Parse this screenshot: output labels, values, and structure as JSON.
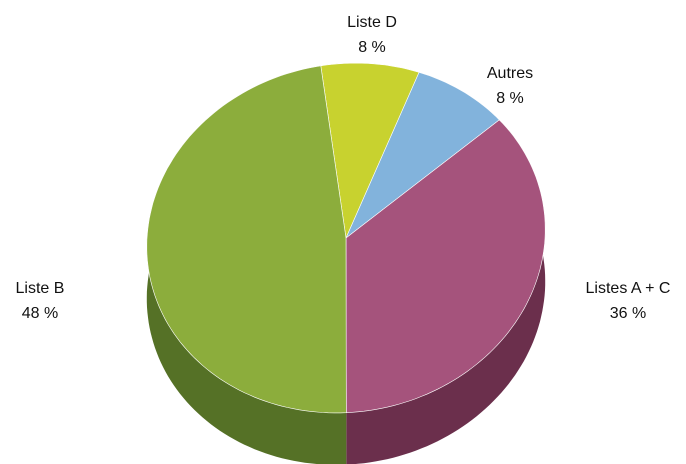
{
  "chart_data": {
    "type": "pie",
    "style": "3d-tilted",
    "title": "",
    "legend": "none",
    "slices": [
      {
        "label": "Listes A + C",
        "value": 36,
        "value_label": "36 %",
        "color": "#a5537c",
        "side_color": "#6b2f4c"
      },
      {
        "label": "Liste B",
        "value": 48,
        "value_label": "48 %",
        "color": "#8cad3c",
        "side_color": "#557126"
      },
      {
        "label": "Liste D",
        "value": 8,
        "value_label": "8 %",
        "color": "#c8d22f",
        "side_color": "#8c9420"
      },
      {
        "label": "Autres",
        "value": 8,
        "value_label": "8 %",
        "color": "#82b3dc",
        "side_color": "#5a86ae"
      }
    ]
  }
}
